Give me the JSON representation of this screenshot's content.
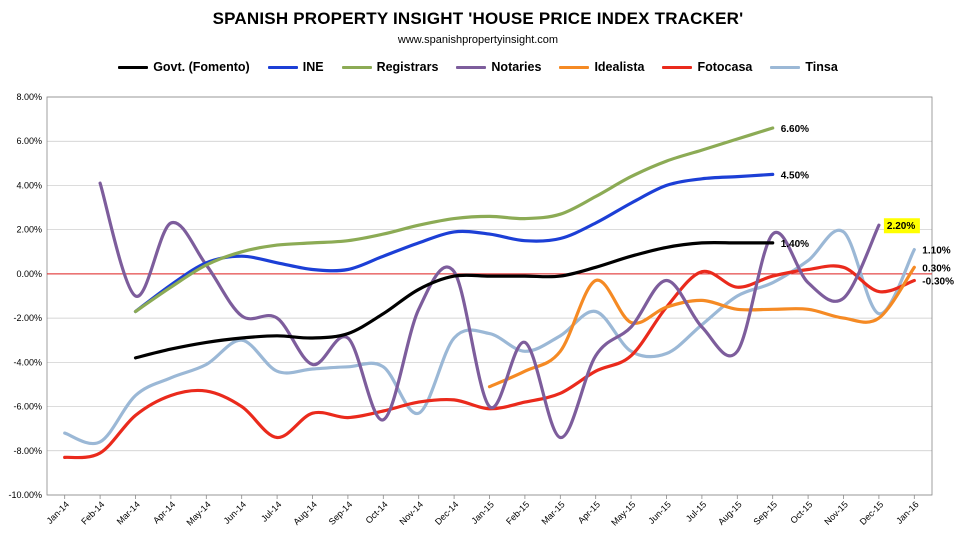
{
  "chart_data": {
    "type": "line",
    "title": "SPANISH PROPERTY INSIGHT 'HOUSE PRICE INDEX TRACKER'",
    "subtitle": "www.spanishpropertyinsight.com",
    "x": [
      "Jan-14",
      "Feb-14",
      "Mar-14",
      "Apr-14",
      "May-14",
      "Jun-14",
      "Jul-14",
      "Aug-14",
      "Sep-14",
      "Oct-14",
      "Nov-14",
      "Dec-14",
      "Jan-15",
      "Feb-15",
      "Mar-15",
      "Apr-15",
      "May-15",
      "Jun-15",
      "Jul-15",
      "Aug-15",
      "Sep-15",
      "Oct-15",
      "Nov-15",
      "Dec-15",
      "Jan-16"
    ],
    "y_ticks": [
      "-10.00%",
      "-8.00%",
      "-6.00%",
      "-4.00%",
      "-2.00%",
      "0.00%",
      "2.00%",
      "4.00%",
      "6.00%",
      "8.00%"
    ],
    "ylim": [
      -10,
      8
    ],
    "grid": true,
    "zero_line_color": "#e02020",
    "legend_position": "top",
    "series": [
      {
        "name": "Govt. (Fomento)",
        "color": "#000000",
        "values": [
          null,
          null,
          -3.8,
          -3.4,
          -3.1,
          -2.9,
          -2.8,
          -2.9,
          -2.7,
          -1.8,
          -0.7,
          -0.1,
          -0.1,
          -0.1,
          -0.1,
          0.3,
          0.8,
          1.2,
          1.4,
          1.4,
          1.4,
          null,
          null,
          null,
          null
        ]
      },
      {
        "name": "INE",
        "color": "#1c3fd6",
        "values": [
          null,
          null,
          -1.7,
          -0.5,
          0.5,
          0.8,
          0.5,
          0.2,
          0.2,
          0.8,
          1.4,
          1.9,
          1.8,
          1.5,
          1.6,
          2.3,
          3.2,
          4.0,
          4.3,
          4.4,
          4.5,
          null,
          null,
          null,
          null
        ]
      },
      {
        "name": "Registrars",
        "color": "#8cab55",
        "values": [
          null,
          null,
          -1.7,
          -0.6,
          0.4,
          1.0,
          1.3,
          1.4,
          1.5,
          1.8,
          2.2,
          2.5,
          2.6,
          2.5,
          2.7,
          3.5,
          4.4,
          5.1,
          5.6,
          6.1,
          6.6,
          null,
          null,
          null,
          null
        ]
      },
      {
        "name": "Notaries",
        "color": "#7d5d9c",
        "values": [
          null,
          4.1,
          -1.0,
          2.3,
          0.4,
          -1.9,
          -2.0,
          -4.1,
          -2.9,
          -6.6,
          -1.6,
          0.1,
          -6.0,
          -3.1,
          -7.4,
          -3.7,
          -2.4,
          -0.3,
          -2.4,
          -3.5,
          1.8,
          -0.4,
          -1.1,
          2.2,
          null
        ]
      },
      {
        "name": "Idealista",
        "color": "#f58a24",
        "values": [
          null,
          null,
          null,
          null,
          null,
          null,
          null,
          null,
          null,
          null,
          null,
          null,
          -5.1,
          -4.4,
          -3.5,
          -0.3,
          -2.2,
          -1.5,
          -1.2,
          -1.6,
          -1.6,
          -1.6,
          -2.0,
          -2.0,
          0.3
        ]
      },
      {
        "name": "Fotocasa",
        "color": "#ea2a1c",
        "values": [
          -8.3,
          -8.1,
          -6.4,
          -5.5,
          -5.3,
          -6.0,
          -7.4,
          -6.3,
          -6.5,
          -6.2,
          -5.8,
          -5.7,
          -6.1,
          -5.8,
          -5.4,
          -4.4,
          -3.7,
          -1.5,
          0.1,
          -0.6,
          -0.1,
          0.2,
          0.3,
          -0.8,
          -0.3
        ]
      },
      {
        "name": "Tinsa",
        "color": "#9bb8d6",
        "values": [
          -7.2,
          -7.6,
          -5.5,
          -4.7,
          -4.1,
          -3.0,
          -4.4,
          -4.3,
          -4.2,
          -4.2,
          -6.3,
          -2.9,
          -2.7,
          -3.5,
          -2.8,
          -1.7,
          -3.5,
          -3.6,
          -2.3,
          -1.0,
          -0.4,
          0.6,
          1.9,
          -1.8,
          1.1
        ]
      }
    ],
    "end_labels": [
      {
        "series": "Registrars",
        "text": "6.60%",
        "x": "Sep-15",
        "y": 6.6
      },
      {
        "series": "INE",
        "text": "4.50%",
        "x": "Sep-15",
        "y": 4.5
      },
      {
        "series": "Govt. (Fomento)",
        "text": "1.40%",
        "x": "Sep-15",
        "y": 1.4
      },
      {
        "series": "Notaries",
        "text": "2.20%",
        "x": "Dec-15",
        "y": 2.2,
        "highlight": "#ffff00"
      },
      {
        "series": "Tinsa",
        "text": "1.10%",
        "x": "Jan-16",
        "y": 1.1
      },
      {
        "series": "Idealista",
        "text": "0.30%",
        "x": "Jan-16",
        "y": 0.3
      },
      {
        "series": "Fotocasa",
        "text": "-0.30%",
        "x": "Jan-16",
        "y": -0.3
      }
    ]
  }
}
